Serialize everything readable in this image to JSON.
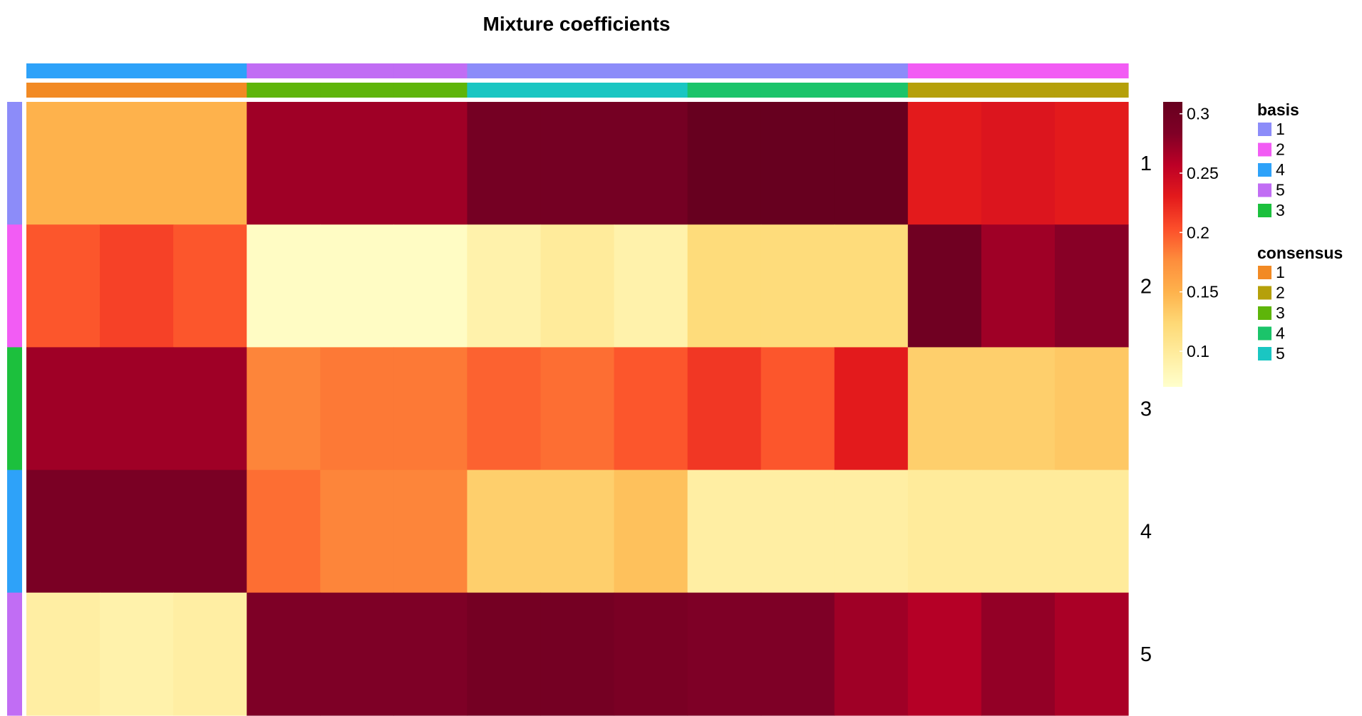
{
  "chart_data": {
    "type": "heatmap",
    "title": "Mixture coefficients",
    "rows": [
      "1",
      "2",
      "3",
      "4",
      "5"
    ],
    "columns": 15,
    "colorscale": {
      "range": [
        0.07,
        0.31
      ],
      "ticks": [
        "0.3",
        "0.25",
        "0.2",
        "0.15",
        "0.1"
      ],
      "tick_values": [
        0.3,
        0.25,
        0.2,
        0.15,
        0.1
      ],
      "colors": [
        "#ffffcc",
        "#ffeda0",
        "#fed976",
        "#feb24c",
        "#fd8d3c",
        "#fc4e2a",
        "#e31a1c",
        "#bd0026",
        "#800026",
        "#67001f"
      ]
    },
    "values": [
      [
        0.15,
        0.15,
        0.15,
        0.27,
        0.27,
        0.27,
        0.295,
        0.295,
        0.295,
        0.31,
        0.31,
        0.31,
        0.23,
        0.235,
        0.23
      ],
      [
        0.2,
        0.21,
        0.2,
        0.075,
        0.075,
        0.075,
        0.09,
        0.1,
        0.09,
        0.12,
        0.12,
        0.12,
        0.3,
        0.27,
        0.28
      ],
      [
        0.27,
        0.27,
        0.27,
        0.18,
        0.185,
        0.185,
        0.195,
        0.19,
        0.2,
        0.215,
        0.2,
        0.23,
        0.13,
        0.13,
        0.135
      ],
      [
        0.29,
        0.29,
        0.29,
        0.19,
        0.18,
        0.18,
        0.13,
        0.13,
        0.14,
        0.095,
        0.095,
        0.095,
        0.1,
        0.1,
        0.1
      ],
      [
        0.095,
        0.09,
        0.095,
        0.285,
        0.285,
        0.285,
        0.295,
        0.295,
        0.29,
        0.285,
        0.285,
        0.27,
        0.26,
        0.275,
        0.265
      ]
    ],
    "column_annotations": {
      "basis": [
        "4",
        "4",
        "4",
        "5",
        "5",
        "5",
        "1",
        "1",
        "1",
        "1",
        "1",
        "1",
        "2",
        "2",
        "2"
      ],
      "consensus": [
        "1",
        "1",
        "1",
        "3",
        "3",
        "3",
        "5",
        "5",
        "5",
        "4",
        "4",
        "4",
        "2",
        "2",
        "2"
      ]
    },
    "row_annotations": {
      "basis": [
        "1",
        "2",
        "3",
        "4",
        "5"
      ]
    },
    "legend": {
      "basis": {
        "title": "basis",
        "items": [
          {
            "label": "1",
            "color": "#8C8CF9"
          },
          {
            "label": "2",
            "color": "#F25CF4"
          },
          {
            "label": "4",
            "color": "#2EA2F9"
          },
          {
            "label": "5",
            "color": "#C16DF4"
          },
          {
            "label": "3",
            "color": "#1CC03D"
          }
        ]
      },
      "consensus": {
        "title": "consensus",
        "items": [
          {
            "label": "1",
            "color": "#F28A24"
          },
          {
            "label": "2",
            "color": "#B5A00A"
          },
          {
            "label": "3",
            "color": "#5EB50A"
          },
          {
            "label": "4",
            "color": "#1BC46A"
          },
          {
            "label": "5",
            "color": "#1AC6C2"
          }
        ]
      }
    }
  }
}
